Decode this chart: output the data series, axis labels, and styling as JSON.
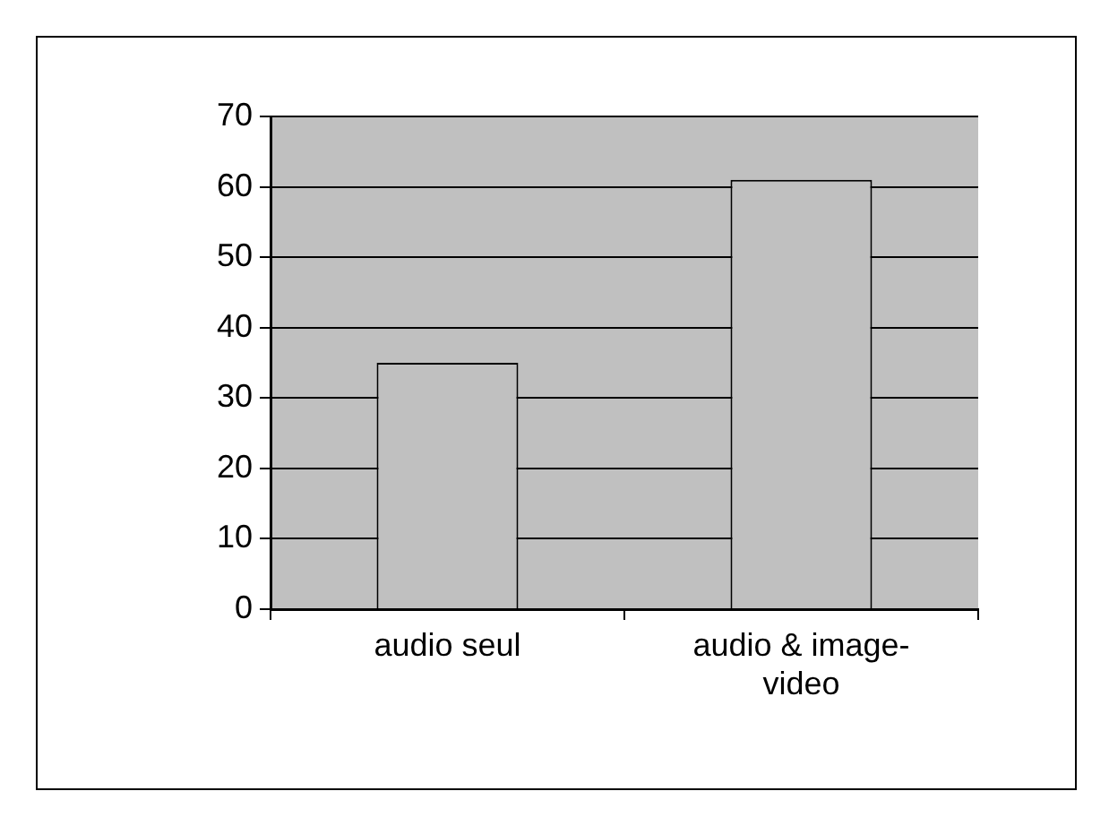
{
  "chart_data": {
    "type": "bar",
    "categories": [
      "audio seul",
      "audio & image-video"
    ],
    "values": [
      35,
      61
    ],
    "color": "#c0c0c0",
    "ylim": [
      0,
      70
    ],
    "yticks": [
      0,
      10,
      20,
      30,
      40,
      50,
      60,
      70
    ],
    "grid": "y"
  }
}
